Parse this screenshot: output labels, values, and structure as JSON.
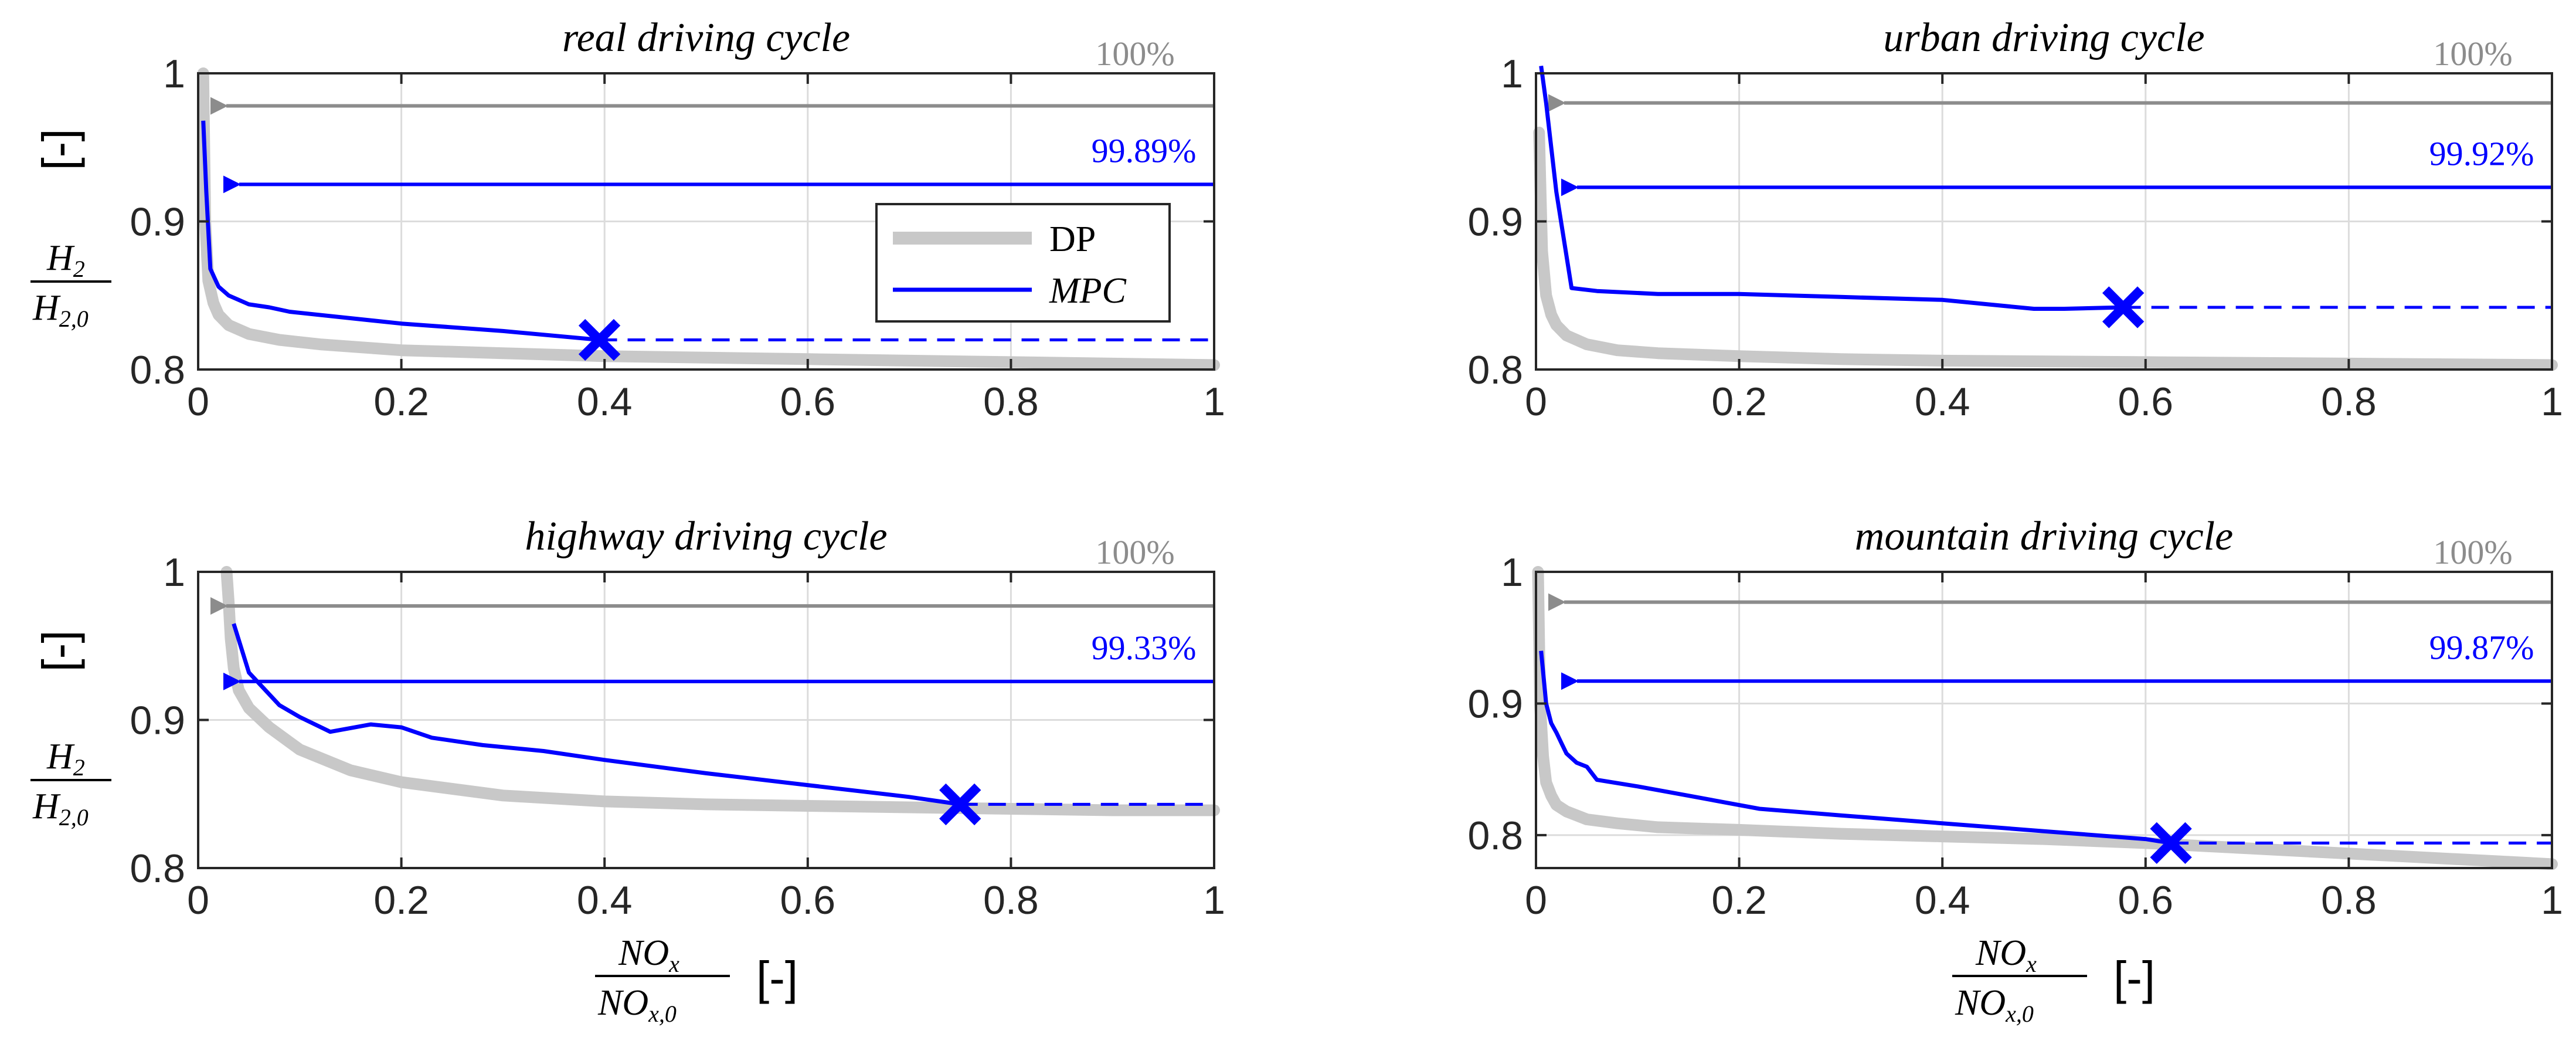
{
  "figure": {
    "ylabel": {
      "num_base": "H",
      "num_sub": "2",
      "den_base": "H",
      "den_sub": "2,0",
      "unit": "[-]"
    },
    "xlabel": {
      "num_base": "NO",
      "num_sub": "x",
      "den_base": "NO",
      "den_sub": "x,0",
      "unit": "[-]"
    },
    "legend": [
      {
        "label": "DP",
        "italic": false
      },
      {
        "label": "MPC",
        "italic": true
      }
    ],
    "colors": {
      "dp": "#c8c8c8",
      "mpc": "#0000ff",
      "arrow_ref": "#8c8c8c",
      "grid": "#dcdcdc",
      "axis": "#262626"
    }
  },
  "chart_data": [
    {
      "type": "line",
      "title": "real driving cycle",
      "xlim": [
        0,
        1
      ],
      "ylim": [
        0.8,
        1
      ],
      "xticks": [
        0,
        0.2,
        0.4,
        0.6,
        0.8,
        1
      ],
      "xtick_labels": [
        "0",
        "0.2",
        "0.4",
        "0.6",
        "0.8",
        "1"
      ],
      "yticks": [
        0.8,
        0.9,
        1
      ],
      "ytick_labels": [
        "0.8",
        "0.9",
        "1"
      ],
      "series": [
        {
          "name": "DP",
          "x": [
            0.005,
            0.007,
            0.01,
            0.015,
            0.02,
            0.03,
            0.05,
            0.08,
            0.12,
            0.2,
            0.3,
            0.4,
            0.5,
            0.6,
            0.7,
            0.8,
            0.9,
            1.0
          ],
          "y": [
            1.0,
            0.9,
            0.86,
            0.845,
            0.837,
            0.83,
            0.824,
            0.82,
            0.817,
            0.813,
            0.811,
            0.809,
            0.808,
            0.807,
            0.806,
            0.805,
            0.804,
            0.803
          ]
        },
        {
          "name": "MPC",
          "x": [
            0.005,
            0.008,
            0.012,
            0.02,
            0.03,
            0.05,
            0.07,
            0.09,
            0.2,
            0.3,
            0.395
          ],
          "y": [
            0.968,
            0.92,
            0.868,
            0.856,
            0.85,
            0.844,
            0.842,
            0.839,
            0.831,
            0.826,
            0.82
          ]
        }
      ],
      "mpc_end": {
        "x": 0.395,
        "y": 0.82
      },
      "ref_arrow": {
        "y": 0.978,
        "label": "100%"
      },
      "mpc_arrow": {
        "y": 0.925,
        "label": "99.89%"
      },
      "show_legend": true
    },
    {
      "type": "line",
      "title": "urban driving cycle",
      "xlim": [
        0,
        1
      ],
      "ylim": [
        0.8,
        1
      ],
      "xticks": [
        0,
        0.2,
        0.4,
        0.6,
        0.8,
        1
      ],
      "xtick_labels": [
        "0",
        "0.2",
        "0.4",
        "0.6",
        "0.8",
        "1"
      ],
      "yticks": [
        0.8,
        0.9,
        1
      ],
      "ytick_labels": [
        "0.8",
        "0.9",
        "1"
      ],
      "series": [
        {
          "name": "DP",
          "x": [
            0.003,
            0.006,
            0.01,
            0.015,
            0.02,
            0.03,
            0.05,
            0.08,
            0.12,
            0.2,
            0.3,
            0.4,
            0.6,
            0.8,
            1.0
          ],
          "y": [
            0.96,
            0.88,
            0.85,
            0.837,
            0.83,
            0.823,
            0.817,
            0.813,
            0.811,
            0.809,
            0.807,
            0.806,
            0.805,
            0.804,
            0.803
          ]
        },
        {
          "name": "MPC",
          "x": [
            0.005,
            0.01,
            0.02,
            0.035,
            0.06,
            0.12,
            0.2,
            0.3,
            0.4,
            0.49,
            0.52,
            0.578
          ],
          "y": [
            1.005,
            0.98,
            0.92,
            0.855,
            0.853,
            0.851,
            0.851,
            0.849,
            0.847,
            0.841,
            0.841,
            0.842
          ]
        }
      ],
      "mpc_end": {
        "x": 0.578,
        "y": 0.842
      },
      "ref_arrow": {
        "y": 0.98,
        "label": "100%"
      },
      "mpc_arrow": {
        "y": 0.923,
        "label": "99.92%"
      },
      "show_legend": false
    },
    {
      "type": "line",
      "title": "highway driving cycle",
      "xlim": [
        0,
        1
      ],
      "ylim": [
        0.8,
        1
      ],
      "xticks": [
        0,
        0.2,
        0.4,
        0.6,
        0.8,
        1
      ],
      "xtick_labels": [
        "0",
        "0.2",
        "0.4",
        "0.6",
        "0.8",
        "1"
      ],
      "yticks": [
        0.8,
        0.9,
        1
      ],
      "ytick_labels": [
        "0.8",
        "0.9",
        "1"
      ],
      "series": [
        {
          "name": "DP",
          "x": [
            0.028,
            0.03,
            0.032,
            0.035,
            0.04,
            0.05,
            0.07,
            0.1,
            0.15,
            0.2,
            0.3,
            0.4,
            0.5,
            0.6,
            0.7,
            0.8,
            0.9,
            1.0
          ],
          "y": [
            1.0,
            0.98,
            0.955,
            0.935,
            0.92,
            0.908,
            0.895,
            0.88,
            0.866,
            0.858,
            0.849,
            0.845,
            0.843,
            0.842,
            0.841,
            0.84,
            0.839,
            0.839
          ]
        },
        {
          "name": "MPC",
          "x": [
            0.035,
            0.05,
            0.08,
            0.1,
            0.13,
            0.17,
            0.2,
            0.23,
            0.28,
            0.34,
            0.4,
            0.5,
            0.6,
            0.7,
            0.75
          ],
          "y": [
            0.965,
            0.932,
            0.91,
            0.902,
            0.892,
            0.897,
            0.895,
            0.888,
            0.883,
            0.879,
            0.873,
            0.864,
            0.856,
            0.848,
            0.843
          ]
        }
      ],
      "mpc_end": {
        "x": 0.75,
        "y": 0.843
      },
      "ref_arrow": {
        "y": 0.977,
        "label": "100%"
      },
      "mpc_arrow": {
        "y": 0.926,
        "label": "99.33%"
      },
      "show_legend": false
    },
    {
      "type": "line",
      "title": "mountain driving cycle",
      "xlim": [
        0,
        1
      ],
      "ylim": [
        0.775,
        1
      ],
      "xticks": [
        0,
        0.2,
        0.4,
        0.6,
        0.8,
        1
      ],
      "xtick_labels": [
        "0",
        "0.2",
        "0.4",
        "0.6",
        "0.8",
        "1"
      ],
      "yticks": [
        0.8,
        0.9,
        1
      ],
      "ytick_labels": [
        "0.8",
        "0.9",
        "1"
      ],
      "series": [
        {
          "name": "DP",
          "x": [
            0.002,
            0.004,
            0.007,
            0.01,
            0.015,
            0.02,
            0.03,
            0.05,
            0.08,
            0.12,
            0.2,
            0.3,
            0.4,
            0.5,
            0.6,
            0.7,
            0.8,
            0.9,
            1.0
          ],
          "y": [
            1.0,
            0.9,
            0.86,
            0.84,
            0.83,
            0.823,
            0.818,
            0.812,
            0.809,
            0.806,
            0.804,
            0.801,
            0.799,
            0.797,
            0.794,
            0.79,
            0.786,
            0.782,
            0.778
          ]
        },
        {
          "name": "MPC",
          "x": [
            0.005,
            0.01,
            0.015,
            0.02,
            0.025,
            0.03,
            0.04,
            0.05,
            0.06,
            0.1,
            0.15,
            0.22,
            0.3,
            0.4,
            0.5,
            0.6,
            0.625
          ],
          "y": [
            0.94,
            0.9,
            0.885,
            0.878,
            0.87,
            0.862,
            0.855,
            0.852,
            0.842,
            0.837,
            0.83,
            0.82,
            0.815,
            0.809,
            0.803,
            0.797,
            0.794
          ]
        }
      ],
      "mpc_end": {
        "x": 0.625,
        "y": 0.794
      },
      "ref_arrow": {
        "y": 0.977,
        "label": "100%"
      },
      "mpc_arrow": {
        "y": 0.917,
        "label": "99.87%"
      },
      "show_legend": false
    }
  ]
}
